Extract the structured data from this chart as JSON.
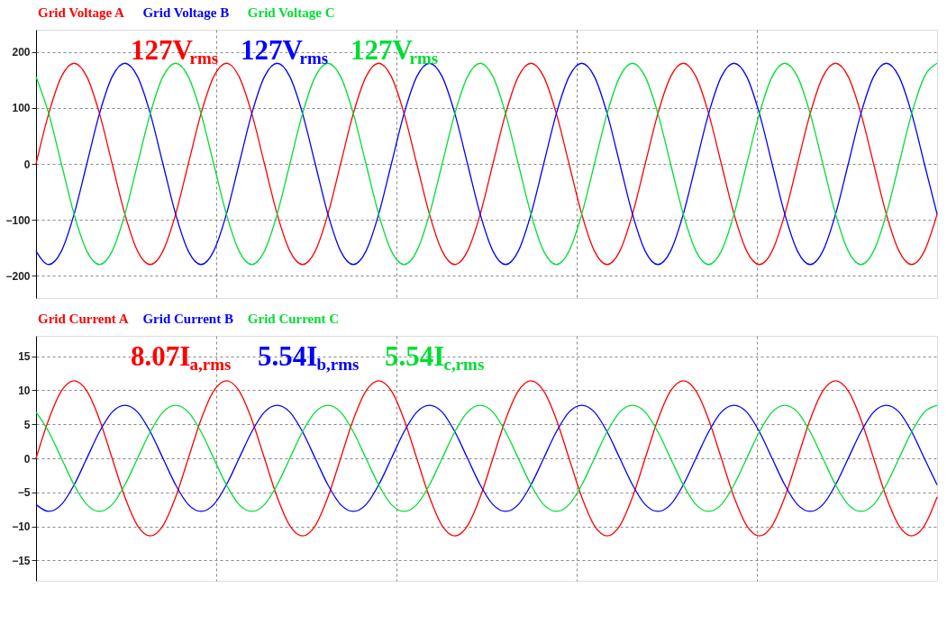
{
  "chart_data": [
    {
      "type": "line",
      "categories": [
        null,
        null,
        null,
        null,
        null,
        null,
        null,
        null,
        null,
        null,
        null,
        null,
        null,
        null,
        null,
        null,
        null,
        null,
        null,
        null,
        null,
        null,
        null,
        null,
        null,
        null,
        null,
        null,
        null,
        null,
        null,
        null,
        null,
        null,
        null,
        null,
        null,
        null,
        null,
        null,
        null,
        null,
        null,
        null,
        null,
        null,
        null,
        null,
        null,
        null,
        null,
        null,
        null,
        null,
        null,
        null,
        null,
        null,
        null,
        null,
        null,
        null,
        null,
        null,
        null,
        null,
        null,
        null,
        null,
        null,
        null,
        null
      ],
      "series": [
        {
          "name": "Grid Voltage A",
          "color": "#ff0000",
          "values": [
            0,
            90,
            156,
            180,
            156,
            90,
            0,
            -90,
            -156,
            -180,
            -156,
            -90,
            0,
            90,
            156,
            180,
            156,
            90,
            0,
            -90,
            -156,
            -180,
            -156,
            -90,
            0,
            90,
            156,
            180,
            156,
            90,
            0,
            -90,
            -156,
            -180,
            -156,
            -90,
            0,
            90,
            156,
            180,
            156,
            90,
            0,
            -90,
            -156,
            -180,
            -156,
            -90,
            0,
            90,
            156,
            180,
            156,
            90,
            0,
            -90,
            -156,
            -180,
            -156,
            -90,
            0,
            90,
            156,
            180,
            156,
            90,
            0,
            -90,
            -156,
            -180,
            -156,
            -90
          ]
        },
        {
          "name": "Grid Voltage B",
          "color": "#0000ff",
          "values": [
            -156,
            -180,
            -156,
            -90,
            0,
            90,
            156,
            180,
            156,
            90,
            0,
            -90,
            -156,
            -180,
            -156,
            -90,
            0,
            90,
            156,
            180,
            156,
            90,
            0,
            -90,
            -156,
            -180,
            -156,
            -90,
            0,
            90,
            156,
            180,
            156,
            90,
            0,
            -90,
            -156,
            -180,
            -156,
            -90,
            0,
            90,
            156,
            180,
            156,
            90,
            0,
            -90,
            -156,
            -180,
            -156,
            -90,
            0,
            90,
            156,
            180,
            156,
            90,
            0,
            -90,
            -156,
            -180,
            -156,
            -90,
            0,
            90,
            156,
            180,
            156,
            90,
            0,
            -90
          ]
        },
        {
          "name": "Grid Voltage C",
          "color": "#00dd33",
          "values": [
            156,
            90,
            0,
            -90,
            -156,
            -180,
            -156,
            -90,
            0,
            90,
            156,
            180,
            156,
            90,
            0,
            -90,
            -156,
            -180,
            -156,
            -90,
            0,
            90,
            156,
            180,
            156,
            90,
            0,
            -90,
            -156,
            -180,
            -156,
            -90,
            0,
            90,
            156,
            180,
            156,
            90,
            0,
            -90,
            -156,
            -180,
            -156,
            -90,
            0,
            90,
            156,
            180,
            156,
            90,
            0,
            -90,
            -156,
            -180,
            -156,
            -90,
            0,
            90,
            156,
            180,
            156,
            90,
            0,
            -90,
            -156,
            -180,
            -156,
            -90,
            0,
            90,
            156,
            180
          ]
        }
      ],
      "annotations": [
        "127V$_{rms}$",
        "127V$_{rms}$",
        "127V$_{rms}$"
      ],
      "ylim": [
        -240,
        240
      ],
      "yticks": [
        -200,
        -100,
        0,
        100,
        200
      ],
      "grid": true,
      "legend": "top left",
      "tick_labels": "y",
      "line_style": "solid",
      "marker": "none"
    },
    {
      "type": "line",
      "categories": [
        null,
        null,
        null,
        null,
        null,
        null,
        null,
        null,
        null,
        null,
        null,
        null,
        null,
        null,
        null,
        null,
        null,
        null,
        null,
        null,
        null,
        null,
        null,
        null,
        null,
        null,
        null,
        null,
        null,
        null,
        null,
        null,
        null,
        null,
        null,
        null,
        null,
        null,
        null,
        null,
        null,
        null,
        null,
        null,
        null,
        null,
        null,
        null,
        null,
        null,
        null,
        null,
        null,
        null,
        null,
        null,
        null,
        null,
        null,
        null,
        null,
        null,
        null,
        null,
        null,
        null,
        null,
        null,
        null,
        null,
        null,
        null
      ],
      "series": [
        {
          "name": "Grid Current A",
          "color": "#ff0000",
          "values": [
            0,
            5.7,
            9.9,
            11.4,
            9.9,
            5.7,
            0,
            -5.7,
            -9.9,
            -11.4,
            -9.9,
            -5.7,
            0,
            5.7,
            9.9,
            11.4,
            9.9,
            5.7,
            0,
            -5.7,
            -9.9,
            -11.4,
            -9.9,
            -5.7,
            0,
            5.7,
            9.9,
            11.4,
            9.9,
            5.7,
            0,
            -5.7,
            -9.9,
            -11.4,
            -9.9,
            -5.7,
            0,
            5.7,
            9.9,
            11.4,
            9.9,
            5.7,
            0,
            -5.7,
            -9.9,
            -11.4,
            -9.9,
            -5.7,
            0,
            5.7,
            9.9,
            11.4,
            9.9,
            5.7,
            0,
            -5.7,
            -9.9,
            -11.4,
            -9.9,
            -5.7,
            0,
            5.7,
            9.9,
            11.4,
            9.9,
            5.7,
            0,
            -5.7,
            -9.9,
            -11.4,
            -9.9,
            -5.7
          ]
        },
        {
          "name": "Grid Current B",
          "color": "#0000ff",
          "values": [
            -6.8,
            -7.8,
            -6.8,
            -3.9,
            0,
            3.9,
            6.8,
            7.8,
            6.8,
            3.9,
            0,
            -3.9,
            -6.8,
            -7.8,
            -6.8,
            -3.9,
            0,
            3.9,
            6.8,
            7.8,
            6.8,
            3.9,
            0,
            -3.9,
            -6.8,
            -7.8,
            -6.8,
            -3.9,
            0,
            3.9,
            6.8,
            7.8,
            6.8,
            3.9,
            0,
            -3.9,
            -6.8,
            -7.8,
            -6.8,
            -3.9,
            0,
            3.9,
            6.8,
            7.8,
            6.8,
            3.9,
            0,
            -3.9,
            -6.8,
            -7.8,
            -6.8,
            -3.9,
            0,
            3.9,
            6.8,
            7.8,
            6.8,
            3.9,
            0,
            -3.9,
            -6.8,
            -7.8,
            -6.8,
            -3.9,
            0,
            3.9,
            6.8,
            7.8,
            6.8,
            3.9,
            0,
            -3.9
          ]
        },
        {
          "name": "Grid Current C",
          "color": "#00dd33",
          "values": [
            6.8,
            3.9,
            0,
            -3.9,
            -6.8,
            -7.8,
            -6.8,
            -3.9,
            0,
            3.9,
            6.8,
            7.8,
            6.8,
            3.9,
            0,
            -3.9,
            -6.8,
            -7.8,
            -6.8,
            -3.9,
            0,
            3.9,
            6.8,
            7.8,
            6.8,
            3.9,
            0,
            -3.9,
            -6.8,
            -7.8,
            -6.8,
            -3.9,
            0,
            3.9,
            6.8,
            7.8,
            6.8,
            3.9,
            0,
            -3.9,
            -6.8,
            -7.8,
            -6.8,
            -3.9,
            0,
            3.9,
            6.8,
            7.8,
            6.8,
            3.9,
            0,
            -3.9,
            -6.8,
            -7.8,
            -6.8,
            -3.9,
            0,
            3.9,
            6.8,
            7.8,
            6.8,
            3.9,
            0,
            -3.9,
            -6.8,
            -7.8,
            -6.8,
            -3.9,
            0,
            3.9,
            6.8,
            7.8
          ]
        }
      ],
      "annotations": [
        "8.07I$_{a,rms}$",
        "5.54I$_{b,rms}$",
        "5.54I$_{c,rms}$"
      ],
      "ylim": [
        -18,
        18
      ],
      "yticks": [
        -15,
        -10,
        -5,
        0,
        5,
        10,
        15
      ],
      "grid": true,
      "legend": "top left",
      "tick_labels": "y",
      "line_style": "solid",
      "marker": "none"
    }
  ]
}
